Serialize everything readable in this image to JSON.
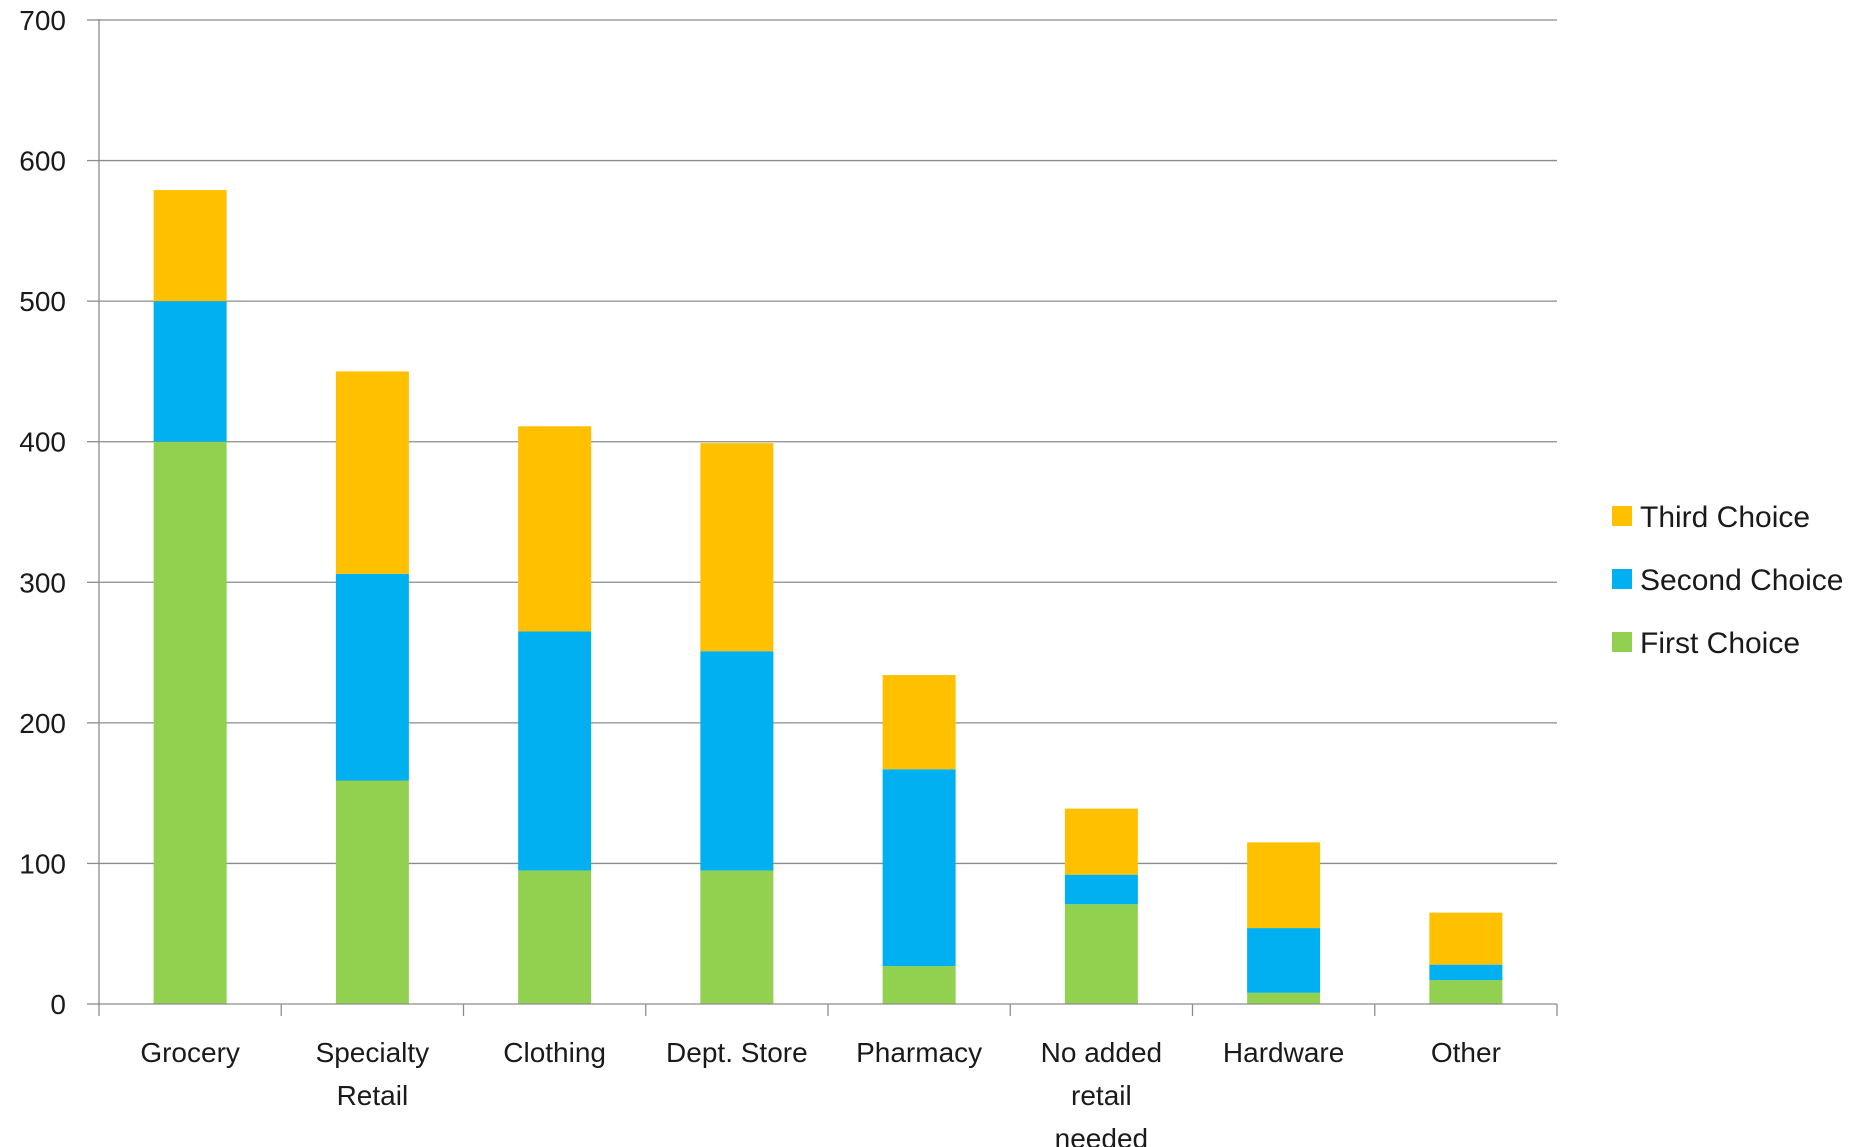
{
  "chart_data": {
    "type": "bar",
    "stacked": true,
    "title": "",
    "xlabel": "",
    "ylabel": "",
    "categories": [
      "Grocery",
      "Specialty Retail",
      "Clothing",
      "Dept. Store",
      "Pharmacy",
      "No added retail needed",
      "Hardware",
      "Other"
    ],
    "category_lines": [
      [
        "Grocery"
      ],
      [
        "Specialty",
        "Retail"
      ],
      [
        "Clothing"
      ],
      [
        "Dept. Store"
      ],
      [
        "Pharmacy"
      ],
      [
        "No added",
        "retail",
        "needed"
      ],
      [
        "Hardware"
      ],
      [
        "Other"
      ]
    ],
    "series": [
      {
        "name": "First Choice",
        "color": "#92d050",
        "values": [
          400,
          159,
          95,
          95,
          27,
          71,
          8,
          17
        ]
      },
      {
        "name": "Second Choice",
        "color": "#00b0f0",
        "values": [
          100,
          147,
          170,
          156,
          140,
          21,
          46,
          11
        ]
      },
      {
        "name": "Third Choice",
        "color": "#ffc000",
        "values": [
          79,
          144,
          146,
          148,
          67,
          47,
          61,
          37
        ]
      }
    ],
    "ylim": [
      0,
      700
    ],
    "yticks": [
      0,
      100,
      200,
      300,
      400,
      500,
      600,
      700
    ],
    "grid": true,
    "legend": {
      "placement": "right",
      "order": [
        "Third Choice",
        "Second Choice",
        "First Choice"
      ]
    }
  }
}
